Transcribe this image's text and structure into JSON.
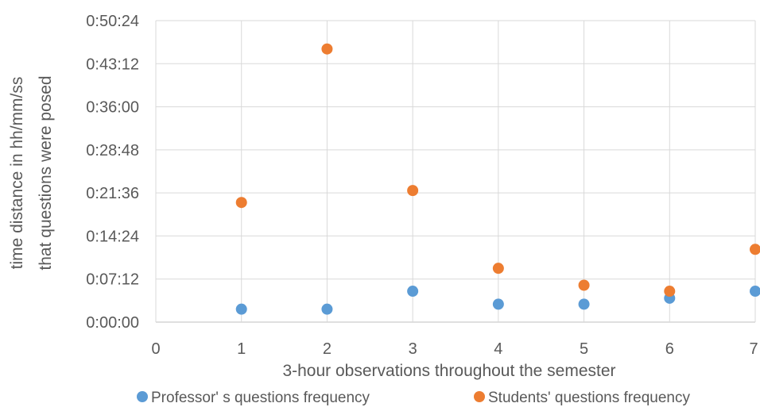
{
  "chart_data": {
    "type": "scatter",
    "xlabel": "3-hour  observations  throughout  the semester",
    "ylabel_lines": [
      "time distance in hh/mm/ss",
      "that questions were  posed"
    ],
    "xlim": [
      0,
      7
    ],
    "ylim": [
      "0:00:00",
      "0:50:24"
    ],
    "x_ticks": [
      "0",
      "1",
      "2",
      "3",
      "4",
      "5",
      "6",
      "7"
    ],
    "y_ticks": [
      "0:00:00",
      "0:07:12",
      "0:14:24",
      "0:21:36",
      "0:28:48",
      "0:36:00",
      "0:43:12",
      "0:50:24"
    ],
    "grid": "vertical-and-horizontal",
    "legend_position": "bottom",
    "series": [
      {
        "name": "Professor' s questions frequency",
        "color": "#5b9bd5",
        "points": [
          {
            "x": 1,
            "y": "0:02:10"
          },
          {
            "x": 2,
            "y": "0:02:10"
          },
          {
            "x": 3,
            "y": "0:05:10"
          },
          {
            "x": 4,
            "y": "0:03:00"
          },
          {
            "x": 5,
            "y": "0:03:00"
          },
          {
            "x": 6,
            "y": "0:04:00"
          },
          {
            "x": 7,
            "y": "0:05:10"
          }
        ]
      },
      {
        "name": "Students' questions frequency",
        "color": "#ed7d31",
        "points": [
          {
            "x": 1,
            "y": "0:20:00"
          },
          {
            "x": 2,
            "y": "0:45:40"
          },
          {
            "x": 3,
            "y": "0:22:00"
          },
          {
            "x": 4,
            "y": "0:09:00"
          },
          {
            "x": 5,
            "y": "0:06:10"
          },
          {
            "x": 6,
            "y": "0:05:10"
          },
          {
            "x": 7,
            "y": "0:12:10"
          }
        ]
      }
    ]
  }
}
